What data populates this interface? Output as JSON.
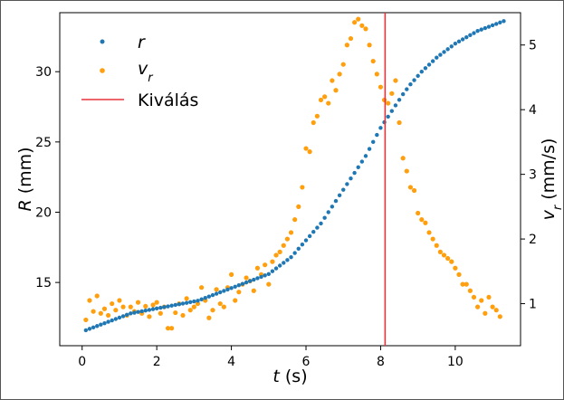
{
  "chart_data": {
    "type": "scatter",
    "xlabel": "t (s)",
    "ylabel_left": "R (mm)",
    "ylabel_right": "v_r (mm/s)",
    "xlim": [
      -0.6,
      11.75
    ],
    "ylim_left": [
      10.5,
      34.2
    ],
    "ylim_right": [
      0.35,
      5.5
    ],
    "x_ticks": [
      0,
      2,
      4,
      6,
      8,
      10
    ],
    "y_left_ticks": [
      15,
      20,
      25,
      30
    ],
    "y_right_ticks": [
      1,
      2,
      3,
      4,
      5
    ],
    "legend_position": "top-left",
    "colors": {
      "r": "#1f77b4",
      "vr": "#ff9f0e",
      "line": "#e8323a"
    },
    "vline": {
      "label": "Kiválás",
      "x": 8.12
    },
    "series": [
      {
        "name": "r",
        "axis": "left",
        "x": [
          0.1,
          0.2,
          0.3,
          0.4,
          0.5,
          0.6,
          0.7,
          0.8,
          0.9,
          1.0,
          1.1,
          1.2,
          1.3,
          1.4,
          1.5,
          1.6,
          1.7,
          1.8,
          1.9,
          2.0,
          2.1,
          2.2,
          2.3,
          2.4,
          2.5,
          2.6,
          2.7,
          2.8,
          2.9,
          3.0,
          3.1,
          3.2,
          3.3,
          3.4,
          3.5,
          3.6,
          3.7,
          3.8,
          3.9,
          4.0,
          4.1,
          4.2,
          4.3,
          4.4,
          4.5,
          4.6,
          4.7,
          4.8,
          4.9,
          5.0,
          5.1,
          5.2,
          5.3,
          5.4,
          5.5,
          5.6,
          5.7,
          5.8,
          5.9,
          6.0,
          6.1,
          6.2,
          6.3,
          6.4,
          6.5,
          6.6,
          6.7,
          6.8,
          6.9,
          7.0,
          7.1,
          7.2,
          7.3,
          7.4,
          7.5,
          7.6,
          7.7,
          7.8,
          7.9,
          8.0,
          8.1,
          8.2,
          8.3,
          8.4,
          8.5,
          8.6,
          8.7,
          8.8,
          8.9,
          9.0,
          9.1,
          9.2,
          9.3,
          9.4,
          9.5,
          9.6,
          9.7,
          9.8,
          9.9,
          10.0,
          10.1,
          10.2,
          10.3,
          10.4,
          10.5,
          10.6,
          10.7,
          10.8,
          10.9,
          11.0,
          11.1,
          11.2,
          11.3
        ],
        "y": [
          11.6,
          11.7,
          11.8,
          11.9,
          12.0,
          12.1,
          12.2,
          12.3,
          12.4,
          12.5,
          12.6,
          12.7,
          12.8,
          12.85,
          12.9,
          12.95,
          13.0,
          13.05,
          13.1,
          13.15,
          13.2,
          13.25,
          13.3,
          13.35,
          13.4,
          13.45,
          13.5,
          13.55,
          13.6,
          13.65,
          13.7,
          13.8,
          13.9,
          14.0,
          14.1,
          14.2,
          14.3,
          14.4,
          14.5,
          14.6,
          14.7,
          14.8,
          14.9,
          15.0,
          15.1,
          15.2,
          15.3,
          15.4,
          15.5,
          15.6,
          15.8,
          16.0,
          16.2,
          16.4,
          16.6,
          16.8,
          17.1,
          17.4,
          17.7,
          18.0,
          18.3,
          18.6,
          18.9,
          19.2,
          19.6,
          20.0,
          20.4,
          20.8,
          21.2,
          21.6,
          22.0,
          22.4,
          22.8,
          23.2,
          23.6,
          24.0,
          24.5,
          25.0,
          25.5,
          26.0,
          26.4,
          26.8,
          27.2,
          27.6,
          28.0,
          28.4,
          28.75,
          29.1,
          29.4,
          29.7,
          30.0,
          30.25,
          30.5,
          30.75,
          31.0,
          31.2,
          31.4,
          31.6,
          31.8,
          32.0,
          32.15,
          32.3,
          32.45,
          32.6,
          32.75,
          32.9,
          33.0,
          33.1,
          33.2,
          33.3,
          33.4,
          33.5,
          33.6
        ]
      },
      {
        "name": "v_r",
        "axis": "right",
        "x": [
          0.1,
          0.2,
          0.3,
          0.4,
          0.5,
          0.6,
          0.7,
          0.8,
          0.9,
          1.0,
          1.1,
          1.2,
          1.3,
          1.4,
          1.5,
          1.6,
          1.7,
          1.8,
          1.9,
          2.0,
          2.1,
          2.2,
          2.3,
          2.4,
          2.5,
          2.6,
          2.7,
          2.8,
          2.9,
          3.0,
          3.1,
          3.2,
          3.3,
          3.4,
          3.5,
          3.6,
          3.7,
          3.8,
          3.9,
          4.0,
          4.1,
          4.2,
          4.3,
          4.4,
          4.5,
          4.6,
          4.7,
          4.8,
          4.9,
          5.0,
          5.1,
          5.2,
          5.3,
          5.4,
          5.5,
          5.6,
          5.7,
          5.8,
          5.9,
          6.0,
          6.1,
          6.2,
          6.3,
          6.4,
          6.5,
          6.6,
          6.7,
          6.8,
          6.9,
          7.0,
          7.1,
          7.2,
          7.3,
          7.4,
          7.5,
          7.6,
          7.7,
          7.8,
          7.9,
          8.0,
          8.1,
          8.2,
          8.3,
          8.4,
          8.5,
          8.6,
          8.7,
          8.8,
          8.9,
          9.0,
          9.1,
          9.2,
          9.3,
          9.4,
          9.5,
          9.6,
          9.7,
          9.8,
          9.9,
          10.0,
          10.1,
          10.2,
          10.3,
          10.4,
          10.5,
          10.6,
          10.7,
          10.8,
          10.9,
          11.0,
          11.1,
          11.2
        ],
        "y": [
          0.75,
          1.05,
          0.88,
          1.12,
          0.85,
          0.92,
          0.82,
          1.0,
          0.9,
          1.05,
          0.95,
          0.82,
          0.95,
          0.88,
          1.02,
          0.85,
          0.96,
          0.8,
          0.98,
          1.02,
          0.85,
          0.95,
          0.62,
          0.62,
          0.86,
          1.0,
          0.82,
          1.08,
          0.9,
          0.95,
          1.0,
          1.25,
          1.05,
          0.78,
          0.9,
          1.22,
          1.0,
          0.95,
          1.25,
          1.45,
          1.05,
          1.18,
          1.3,
          1.4,
          1.35,
          1.2,
          1.55,
          1.45,
          1.6,
          1.3,
          1.65,
          1.75,
          1.8,
          1.9,
          2.0,
          2.1,
          2.3,
          2.5,
          2.8,
          3.4,
          3.35,
          3.8,
          3.9,
          4.15,
          4.2,
          4.1,
          4.45,
          4.3,
          4.55,
          4.7,
          5.0,
          5.1,
          5.35,
          5.4,
          5.3,
          5.25,
          5.0,
          4.75,
          4.55,
          4.35,
          4.15,
          4.1,
          4.25,
          4.45,
          3.8,
          3.25,
          3.05,
          2.8,
          2.75,
          2.4,
          2.3,
          2.25,
          2.1,
          2.0,
          1.9,
          1.8,
          1.75,
          1.7,
          1.65,
          1.55,
          1.45,
          1.3,
          1.3,
          1.2,
          1.1,
          0.95,
          1.05,
          0.85,
          1.1,
          0.95,
          0.9,
          0.8
        ]
      }
    ]
  }
}
